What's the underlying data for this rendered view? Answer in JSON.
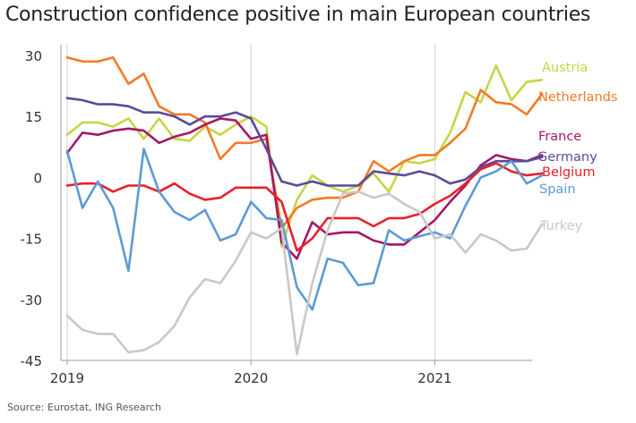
{
  "title": "Construction confidence positive in main European countries",
  "source": "Source: Eurostat, ING Research",
  "chart_data": {
    "type": "line",
    "title": "Construction confidence positive in main European countries",
    "xlabel": "",
    "ylabel": "",
    "ylim": [
      -45,
      30
    ],
    "yticks": [
      30,
      15,
      0,
      -15,
      -30,
      -45
    ],
    "xticks": [
      "2019",
      "2020",
      "2021"
    ],
    "x_unit": "months, Jan 2019 - Aug 2021",
    "grid": "vertical",
    "legend": "labels at right end of lines",
    "x": [
      "2019-01",
      "2019-02",
      "2019-03",
      "2019-04",
      "2019-05",
      "2019-06",
      "2019-07",
      "2019-08",
      "2019-09",
      "2019-10",
      "2019-11",
      "2019-12",
      "2020-01",
      "2020-02",
      "2020-03",
      "2020-04",
      "2020-05",
      "2020-06",
      "2020-07",
      "2020-08",
      "2020-09",
      "2020-10",
      "2020-11",
      "2020-12",
      "2021-01",
      "2021-02",
      "2021-03",
      "2021-04",
      "2021-05",
      "2021-06",
      "2021-07",
      "2021-08"
    ],
    "series": [
      {
        "name": "Austria",
        "color": "#c8d444",
        "values": [
          10.5,
          13.5,
          13.5,
          12.5,
          14.5,
          9.5,
          14.5,
          9.5,
          9.0,
          12.5,
          10.5,
          13.0,
          15.0,
          12.5,
          -17.0,
          -5.5,
          0.5,
          -2.0,
          -3.5,
          -2.0,
          1.0,
          -3.5,
          4.0,
          3.5,
          4.5,
          11.0,
          21.0,
          18.5,
          27.5,
          19.0,
          23.5,
          24.0
        ]
      },
      {
        "name": "Netherlands",
        "color": "#f47a25",
        "values": [
          29.5,
          28.5,
          28.5,
          29.5,
          23.0,
          25.5,
          17.5,
          15.5,
          15.5,
          13.5,
          4.5,
          8.5,
          8.5,
          9.5,
          -12.5,
          -7.5,
          -5.5,
          -5.0,
          -5.0,
          -3.5,
          4.0,
          1.5,
          4.0,
          5.5,
          5.5,
          8.5,
          12.0,
          21.5,
          18.5,
          18.0,
          15.5,
          20.5
        ]
      },
      {
        "name": "France",
        "color": "#a4176a",
        "values": [
          6.0,
          11.0,
          10.5,
          11.5,
          12.0,
          11.5,
          8.5,
          10.0,
          11.0,
          13.0,
          14.5,
          14.0,
          9.5,
          10.5,
          -16.0,
          -20.0,
          -11.0,
          -14.0,
          -13.5,
          -13.5,
          -15.5,
          -16.5,
          -16.5,
          -13.5,
          -10.5,
          -6.0,
          -2.0,
          3.0,
          5.5,
          4.5,
          4.0,
          5.5
        ]
      },
      {
        "name": "Germany",
        "color": "#5a4a9a",
        "values": [
          19.5,
          19.0,
          18.0,
          18.0,
          17.5,
          16.0,
          16.0,
          15.0,
          13.0,
          15.0,
          15.0,
          16.0,
          14.5,
          7.0,
          -1.0,
          -2.0,
          -1.0,
          -2.0,
          -2.0,
          -2.0,
          1.5,
          1.0,
          0.5,
          1.5,
          0.5,
          -1.5,
          -0.5,
          2.5,
          4.0,
          4.0,
          4.0,
          5.0
        ]
      },
      {
        "name": "Belgium",
        "color": "#e8202a",
        "values": [
          -2.0,
          -1.5,
          -1.5,
          -3.5,
          -2.0,
          -2.0,
          -3.5,
          -1.5,
          -4.0,
          -5.5,
          -5.0,
          -2.5,
          -2.5,
          -2.5,
          -6.0,
          -18.0,
          -15.0,
          -10.0,
          -10.0,
          -10.0,
          -12.0,
          -10.0,
          -10.0,
          -9.0,
          -6.5,
          -4.5,
          -1.5,
          2.0,
          3.5,
          1.5,
          0.5,
          1.0
        ]
      },
      {
        "name": "Spain",
        "color": "#5b9bd5",
        "values": [
          6.5,
          -7.5,
          -1.0,
          -7.5,
          -23.0,
          7.0,
          -3.5,
          -8.5,
          -10.5,
          -8.0,
          -15.5,
          -14.0,
          -6.0,
          -10.0,
          -10.5,
          -27.0,
          -32.5,
          -20.0,
          -21.0,
          -26.5,
          -26.0,
          -13.0,
          -15.5,
          -14.5,
          -13.5,
          -15.0,
          -7.0,
          0.0,
          1.5,
          4.0,
          -1.5,
          0.5
        ]
      },
      {
        "name": "Turkey",
        "color": "#c8c8c8",
        "values": [
          -34.0,
          -37.5,
          -38.5,
          -38.5,
          -43.0,
          -42.5,
          -40.5,
          -36.5,
          -29.5,
          -25.0,
          -26.0,
          -20.5,
          -13.5,
          -15.0,
          -12.5,
          -43.5,
          -26.0,
          -13.0,
          -4.0,
          -3.5,
          -5.0,
          -4.0,
          -6.5,
          -8.5,
          -15.0,
          -14.0,
          -18.5,
          -14.0,
          -15.5,
          -18.0,
          -17.5,
          -11.5
        ]
      }
    ]
  }
}
